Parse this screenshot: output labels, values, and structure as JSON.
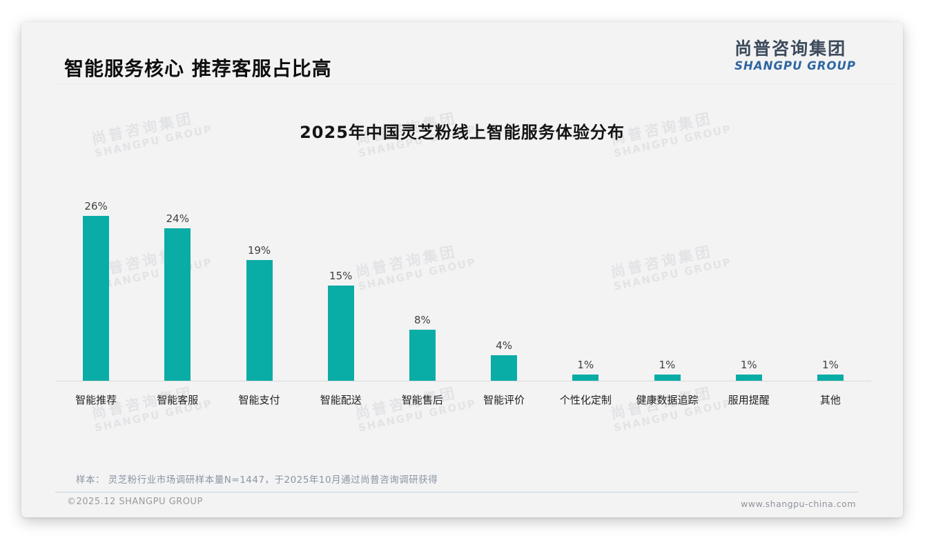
{
  "page": {
    "header": {
      "title": "智能服务核心 推荐客服占比高",
      "logo": {
        "zh": "尚普咨询集团",
        "en": "SHANGPU GROUP"
      }
    },
    "watermark": {
      "line1": "尚普咨询集团",
      "line2": "SHANGPU GROUP"
    },
    "note": "样本： 灵芝粉行业市场调研样本量N=1447，于2025年10月通过尚普咨询调研获得",
    "footer": {
      "copyright": "©2025.12 SHANGPU GROUP",
      "website": "www.shangpu-china.com"
    },
    "colors": {
      "card_background": "#f3f3f4",
      "bar": "#0aaca6",
      "logo_zh": "#3c4a5b",
      "logo_en": "#2e66a0",
      "note_text": "#8a94a2"
    }
  },
  "chart_data": {
    "type": "bar",
    "title": "2025年中国灵芝粉线上智能服务体验分布",
    "categories": [
      "智能推荐",
      "智能客服",
      "智能支付",
      "智能配送",
      "智能售后",
      "智能评价",
      "个性化定制",
      "健康数据追踪",
      "服用提醒",
      "其他"
    ],
    "values": [
      26,
      24,
      19,
      15,
      8,
      4,
      1,
      1,
      1,
      1
    ],
    "value_suffix": "%",
    "bar_color": "#0aaca6",
    "xlabel": "",
    "ylabel": "",
    "ylim": [
      0,
      29
    ],
    "grid": false,
    "legend": null,
    "data_labels": true
  }
}
